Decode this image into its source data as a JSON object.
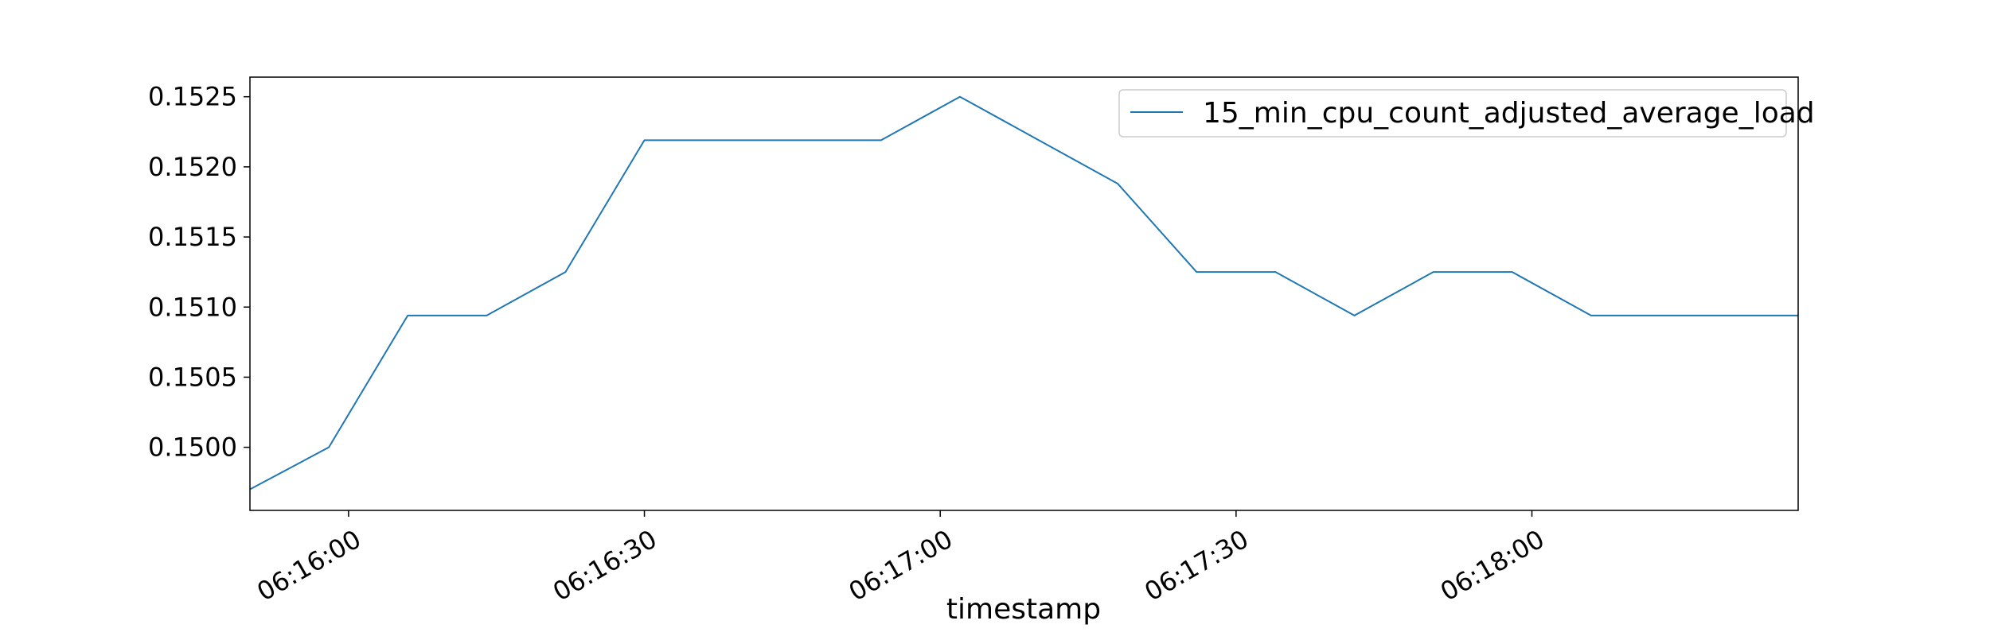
{
  "chart_data": {
    "type": "line",
    "title": "",
    "xlabel": "timestamp",
    "ylabel": "",
    "x_ticks": [
      "06:16:00",
      "06:16:30",
      "06:17:00",
      "06:17:30",
      "06:18:00"
    ],
    "y_ticks": [
      "0.1500",
      "0.1505",
      "0.1510",
      "0.1515",
      "0.1520",
      "0.1525"
    ],
    "xlim": [
      "06:15:50",
      "06:18:27"
    ],
    "ylim": [
      0.14955,
      0.15264
    ],
    "grid": false,
    "legend": {
      "position": "top-right"
    },
    "colors": {
      "series": "#1f77b4",
      "frame": "#000000",
      "legend_border": "#cccccc"
    },
    "series": [
      {
        "name": "15_min_cpu_count_adjusted_average_load",
        "x": [
          "06:15:50",
          "06:15:58",
          "06:16:06",
          "06:16:14",
          "06:16:22",
          "06:16:30",
          "06:16:38",
          "06:16:46",
          "06:16:54",
          "06:17:02",
          "06:17:10",
          "06:17:18",
          "06:17:26",
          "06:17:34",
          "06:17:42",
          "06:17:50",
          "06:17:58",
          "06:18:06",
          "06:18:14",
          "06:18:22",
          "06:18:27"
        ],
        "values": [
          0.1497,
          0.15,
          0.15094,
          0.15094,
          0.15125,
          0.15219,
          0.15219,
          0.15219,
          0.15219,
          0.1525,
          0.15219,
          0.15188,
          0.15125,
          0.15125,
          0.15094,
          0.15125,
          0.15125,
          0.15094,
          0.15094,
          0.15094,
          0.15094
        ]
      }
    ]
  }
}
